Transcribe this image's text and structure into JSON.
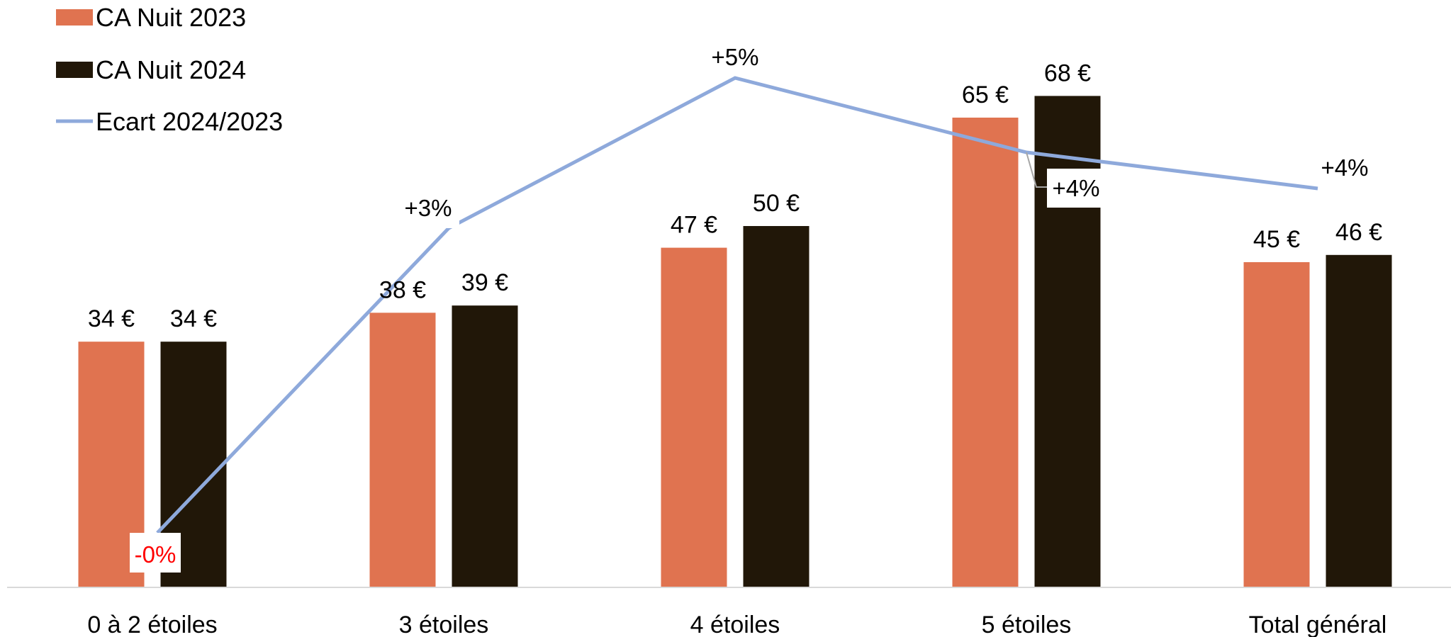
{
  "chart_data": {
    "type": "bar",
    "categories": [
      "0 à 2 étoiles",
      "3 étoiles",
      "4 étoiles",
      "5 étoiles",
      "Total général"
    ],
    "series": [
      {
        "name": "CA Nuit 2023",
        "kind": "bar",
        "color": "#E07350",
        "values": [
          34,
          38,
          47,
          65,
          45
        ],
        "labels": [
          "34 €",
          "38 €",
          "47 €",
          "65 €",
          "45 €"
        ]
      },
      {
        "name": "CA Nuit 2024",
        "kind": "bar",
        "color": "#211708",
        "values": [
          34,
          39,
          50,
          68,
          46
        ],
        "labels": [
          "34 €",
          "39 €",
          "50 €",
          "68 €",
          "46 €"
        ]
      },
      {
        "name": "Ecart 2024/2023",
        "kind": "line",
        "color": "#8EA9DB",
        "values": [
          0,
          3,
          5,
          4,
          4
        ],
        "labels": [
          "-0%",
          "+3%",
          "+5%",
          "+4%",
          "+4%"
        ],
        "negative_label_color": "#FF0000"
      }
    ],
    "ylim": [
      0,
      70
    ],
    "legend": "top-left",
    "grid": false
  }
}
